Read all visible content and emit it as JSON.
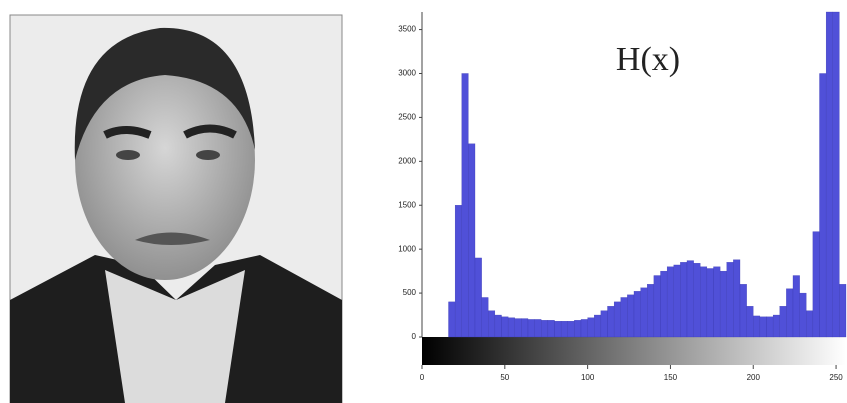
{
  "chart_data": {
    "type": "histogram",
    "annotation": "H(x)",
    "bins": [
      0,
      4,
      8,
      12,
      16,
      20,
      24,
      28,
      32,
      36,
      40,
      44,
      48,
      52,
      56,
      60,
      64,
      68,
      72,
      76,
      80,
      84,
      88,
      92,
      96,
      100,
      104,
      108,
      112,
      116,
      120,
      124,
      128,
      132,
      136,
      140,
      144,
      148,
      152,
      156,
      160,
      164,
      168,
      172,
      176,
      180,
      184,
      188,
      192,
      196,
      200,
      204,
      208,
      212,
      216,
      220,
      224,
      228,
      232,
      236,
      240,
      244,
      248,
      252,
      256
    ],
    "values": [
      0,
      0,
      0,
      0,
      400,
      1500,
      3000,
      2200,
      900,
      450,
      300,
      250,
      230,
      220,
      210,
      210,
      200,
      200,
      190,
      190,
      180,
      180,
      180,
      190,
      200,
      220,
      250,
      300,
      350,
      400,
      450,
      480,
      520,
      560,
      600,
      700,
      750,
      800,
      820,
      850,
      870,
      840,
      800,
      780,
      800,
      750,
      850,
      880,
      600,
      350,
      240,
      230,
      230,
      250,
      350,
      550,
      700,
      500,
      300,
      1200,
      3000,
      3700,
      3700,
      600
    ],
    "color": "#5050d8",
    "xlim": [
      0,
      256
    ],
    "ylim": [
      0,
      3700
    ],
    "xticks": [
      0,
      50,
      100,
      150,
      200,
      250
    ],
    "yticks": [
      0,
      500,
      1000,
      1500,
      2000,
      2500,
      3000,
      3500
    ]
  }
}
